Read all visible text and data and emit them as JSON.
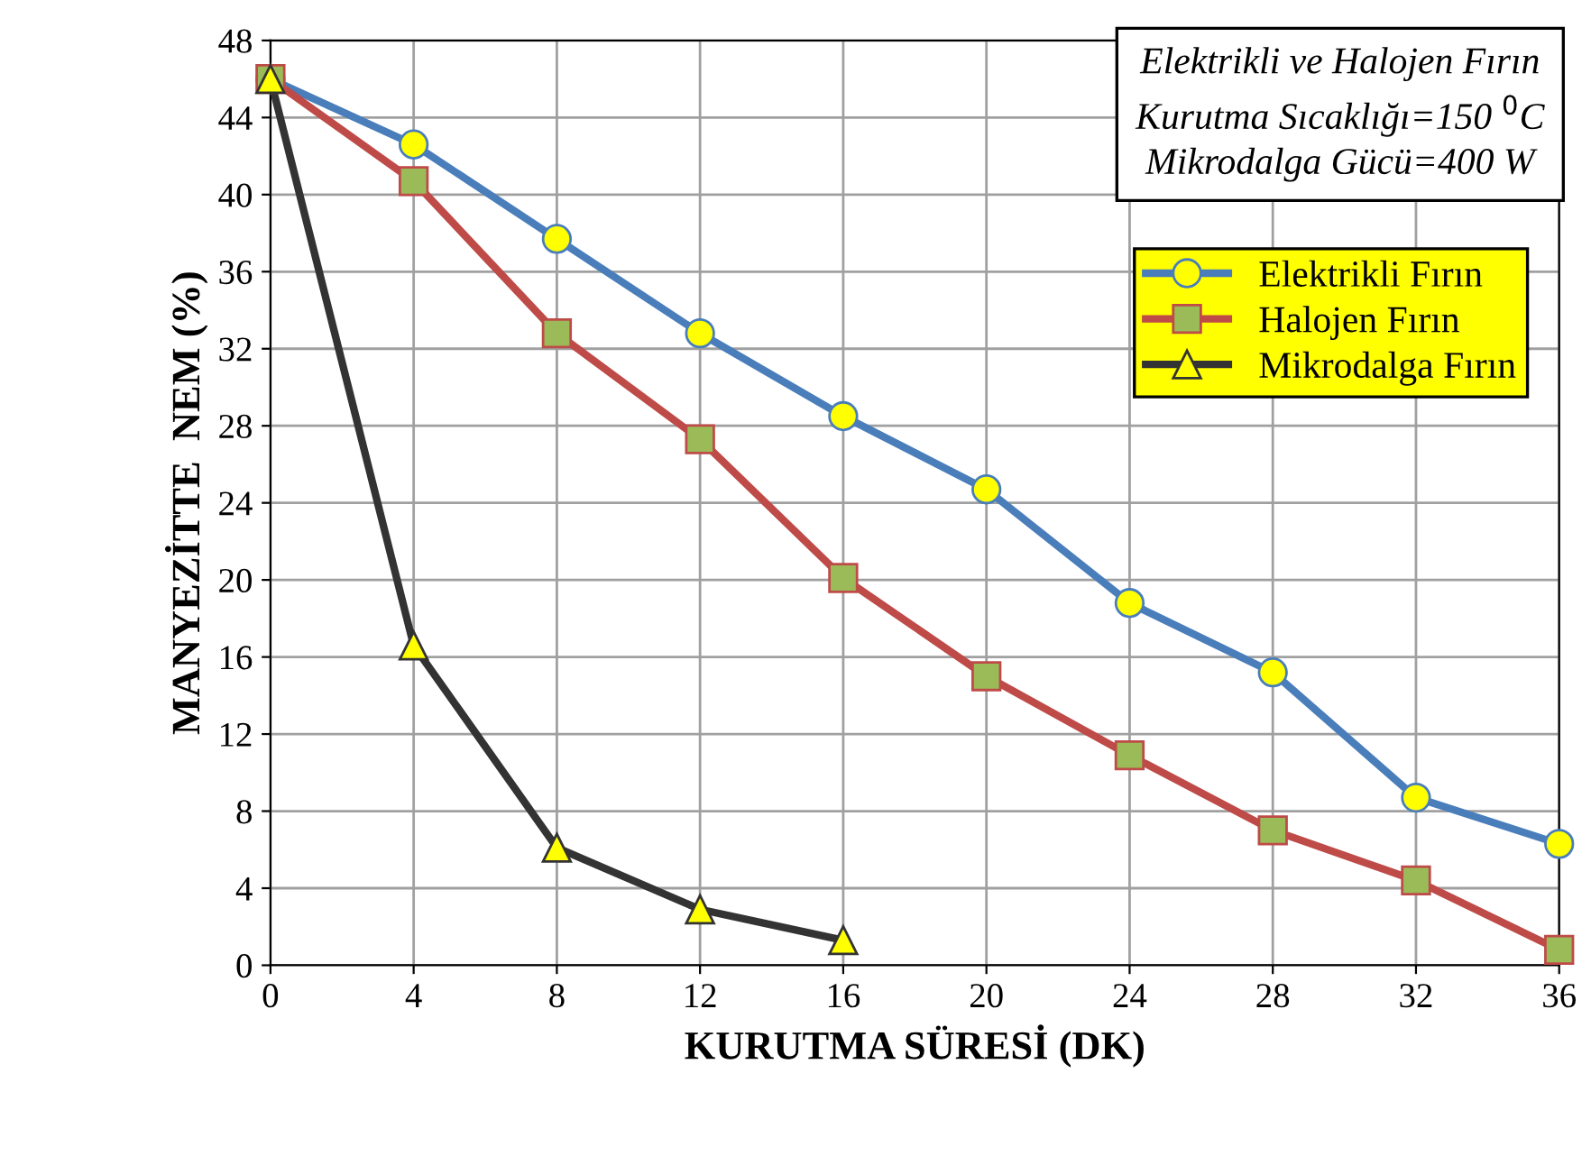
{
  "chart_data": {
    "type": "line",
    "xlabel": "KURUTMA SÜRESİ (DK)",
    "ylabel": "MANYEZİTTE  NEM (%)",
    "x": [
      0,
      4,
      8,
      12,
      16,
      20,
      24,
      28,
      32,
      36
    ],
    "series": [
      {
        "name": "Elektrikli Fırın",
        "color": "#4a7ebb",
        "marker": "circle",
        "values": [
          46,
          42.6,
          37.7,
          32.8,
          28.5,
          24.7,
          18.8,
          15.2,
          8.7,
          6.3
        ]
      },
      {
        "name": "Halojen Fırın",
        "color": "#be4b48",
        "marker": "square",
        "values": [
          46,
          40.7,
          32.8,
          27.3,
          20.1,
          15.0,
          10.9,
          7.0,
          4.4,
          0.8
        ]
      },
      {
        "name": "Mikrodalga Fırın",
        "color": "#333333",
        "marker": "triangle",
        "values": [
          46,
          16.6,
          6.1,
          2.9,
          1.3,
          null,
          null,
          null,
          null,
          null
        ]
      }
    ],
    "xlim": [
      0,
      36
    ],
    "xticks": [
      0,
      4,
      8,
      12,
      16,
      20,
      24,
      28,
      32,
      36
    ],
    "ylim": [
      0,
      48
    ],
    "yticks": [
      0,
      4,
      8,
      12,
      16,
      20,
      24,
      28,
      32,
      36,
      40,
      44,
      48
    ],
    "grid": true,
    "legend": "top right",
    "line_style": "solid",
    "annotations": [
      "Elektrikli ve Halojen Fırın\nKurutma Sıcaklığı=150 $^{0}$C\nMikrodalga Gücü=400 W"
    ]
  }
}
